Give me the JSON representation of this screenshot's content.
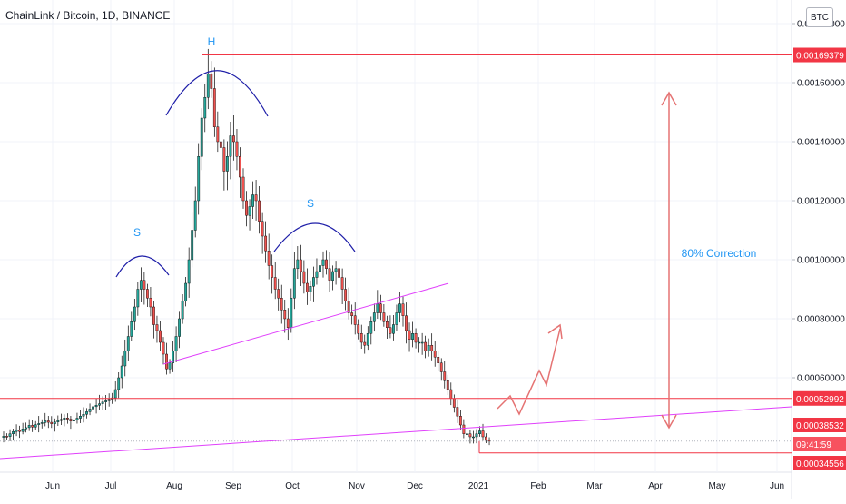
{
  "header": {
    "title": "ChainLink / Bitcoin, 1D, BINANCE",
    "currency_button": "BTC"
  },
  "chart_data": {
    "type": "candlestick",
    "title": "ChainLink / Bitcoin, 1D, BINANCE",
    "x_ticks": [
      "Jun",
      "Jul",
      "Aug",
      "Sep",
      "Oct",
      "Nov",
      "Dec",
      "2021",
      "Feb",
      "Mar",
      "Apr",
      "May",
      "Jun"
    ],
    "y_ticks": [
      "0.00180000",
      "0.00160000",
      "0.00140000",
      "0.00120000",
      "0.00100000",
      "0.00080000",
      "0.00060000"
    ],
    "ylim": [
      0.00028,
      0.00188
    ],
    "price_labels": [
      {
        "id": "high",
        "value": 0.00169379,
        "text": "0.00169379",
        "color": "#f23645"
      },
      {
        "id": "support",
        "value": 0.00052992,
        "text": "0.00052992",
        "color": "#f23645"
      },
      {
        "id": "current",
        "value": 0.00038532,
        "text": "0.00038532",
        "color": "#f23645"
      },
      {
        "id": "low",
        "value": 0.00034556,
        "text": "0.00034556",
        "color": "#f23645"
      }
    ],
    "countdown": "09:41:59",
    "annotations": {
      "head": "H",
      "left_shoulder": "S",
      "right_shoulder": "S",
      "correction": "80% Correction"
    },
    "series": [
      {
        "name": "",
        "close": [
          0.000402,
          0.000401,
          0.00041,
          0.000418,
          0.000424,
          0.000418,
          0.000427,
          0.000431,
          0.000439,
          0.000433,
          0.000441,
          0.000445,
          0.000448,
          0.000454,
          0.000449,
          0.000444,
          0.00045,
          0.000455,
          0.000459,
          0.000464,
          0.00046,
          0.000453,
          0.000458,
          0.000463,
          0.00047,
          0.000476,
          0.000485,
          0.000494,
          0.000502,
          0.000507,
          0.000512,
          0.000518,
          0.000522,
          0.000527,
          0.000532,
          0.00056,
          0.0006,
          0.00064,
          0.00069,
          0.00074,
          0.00079,
          0.00084,
          0.0009,
          0.00093,
          0.0009,
          0.00087,
          0.00084,
          0.00078,
          0.00076,
          0.00072,
          0.00068,
          0.00063,
          0.00065,
          0.00069,
          0.00074,
          0.0008,
          0.00086,
          0.00092,
          0.001,
          0.0011,
          0.0012,
          0.00135,
          0.00148,
          0.00155,
          0.00163,
          0.00158,
          0.00145,
          0.0014,
          0.00138,
          0.0013,
          0.00135,
          0.00142,
          0.0014,
          0.00135,
          0.00128,
          0.0012,
          0.00115,
          0.00118,
          0.00122,
          0.0012,
          0.00113,
          0.00108,
          0.00103,
          0.00098,
          0.00094,
          0.0009,
          0.00087,
          0.00083,
          0.0008,
          0.00077,
          0.00087,
          0.00097,
          0.001,
          0.00096,
          0.00092,
          0.00089,
          0.00091,
          0.00094,
          0.00096,
          0.00098,
          0.001,
          0.00097,
          0.00093,
          0.00096,
          0.00097,
          0.00094,
          0.0009,
          0.00086,
          0.00082,
          0.00081,
          0.00078,
          0.00075,
          0.00072,
          0.00071,
          0.00075,
          0.00079,
          0.00082,
          0.00085,
          0.00082,
          0.00079,
          0.00077,
          0.00075,
          0.00078,
          0.00082,
          0.00085,
          0.00081,
          0.00076,
          0.00073,
          0.00075,
          0.00072,
          0.00072,
          0.00072,
          0.00069,
          0.00071,
          0.00069,
          0.00067,
          0.00065,
          0.00062,
          0.00059,
          0.00056,
          0.00053,
          0.0005,
          0.00047,
          0.00044,
          0.00041,
          0.00041,
          0.0004,
          0.0004,
          0.00041,
          0.00042,
          0.0004,
          0.00039,
          0.000385
        ]
      }
    ]
  }
}
